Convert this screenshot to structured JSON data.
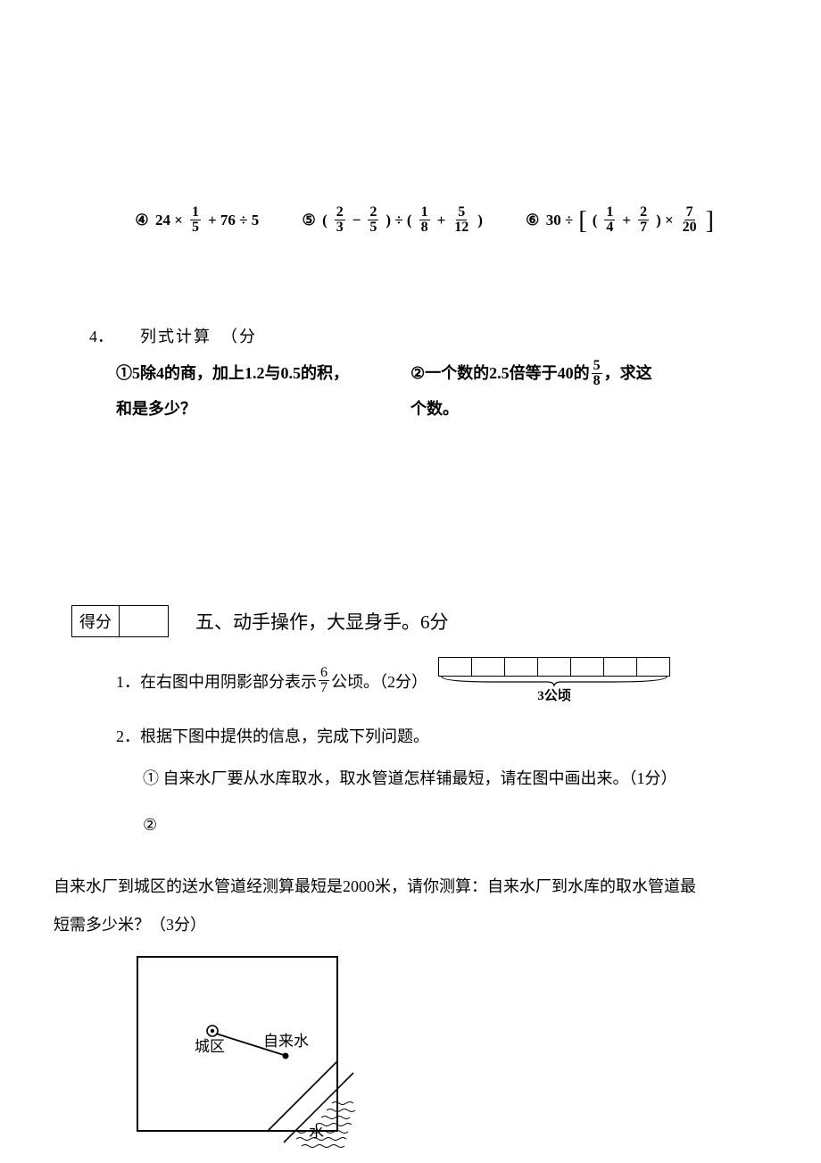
{
  "equations": {
    "e4": {
      "marker": "④",
      "a": "24 ×",
      "f1n": "1",
      "f1d": "5",
      "b": "+ 76 ÷ 5"
    },
    "e5": {
      "marker": "⑤",
      "a": "(",
      "f1n": "2",
      "f1d": "3",
      "m1": "−",
      "f2n": "2",
      "f2d": "5",
      "b": ") ÷ (",
      "f3n": "1",
      "f3d": "8",
      "m2": "+",
      "f4n": "5",
      "f4d": "12",
      "c": ")"
    },
    "e6": {
      "marker": "⑥",
      "a": "30 ÷",
      "b": "(",
      "f1n": "1",
      "f1d": "4",
      "m1": "+",
      "f2n": "2",
      "f2d": "7",
      "c": ") ×",
      "f3n": "7",
      "f3d": "20"
    }
  },
  "q4": {
    "number": "4．",
    "header_partial": "列式计算　（分",
    "left_marker": "①",
    "left_line1": "5除4的商，加上1.2与0.5的积，",
    "left_line2": "和是多少？",
    "right_marker": "②",
    "right_pre": "一个数的2.5倍等于40的",
    "right_fn": "5",
    "right_fd": "8",
    "right_post": "，求这",
    "right_line2": "个数。"
  },
  "section5": {
    "score_label": "得分",
    "title": "五、动手操作，大显身手。6分",
    "q1": {
      "num": "1．",
      "pre": "在右图中用阴影部分表示",
      "fn": "6",
      "fd": "7",
      "post": "公顷。（2分）",
      "bar_cells": 7,
      "bar_label": "3公顷"
    },
    "q2": {
      "num": "2．",
      "text": "根据下图中提供的信息，完成下列问题。",
      "s1_marker": "①",
      "s1_text": "自来水厂要从水库取水，取水管道怎样铺最短，请在图中画出来。（1分）",
      "s2_marker": "②"
    },
    "longtext_a": "自来水厂到城区的送水管道经测算最短是2000米，请你测算：自来水厂到水库的取水管道最",
    "longtext_b": "短需多少米？（3分）",
    "diagram": {
      "city_label": "城区",
      "plant_label": "自来水",
      "water_label": "水"
    }
  }
}
